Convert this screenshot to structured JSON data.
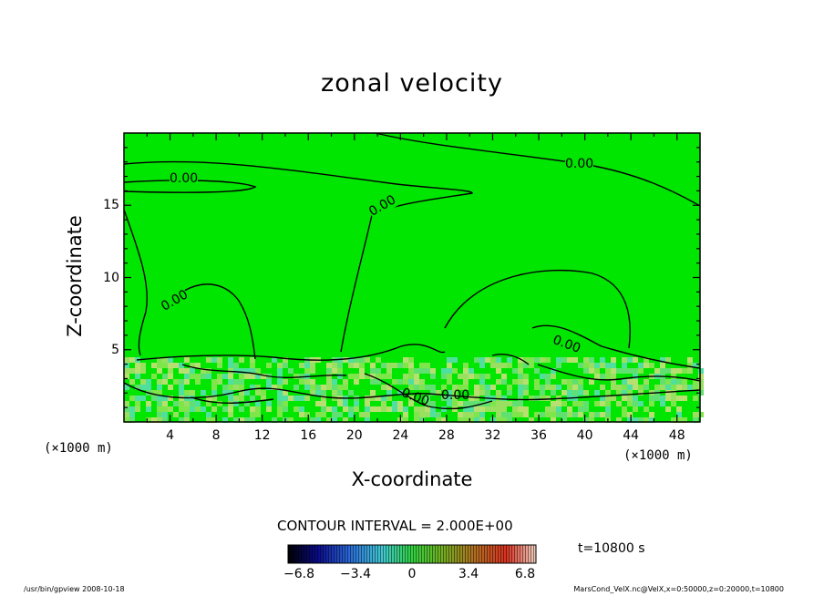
{
  "chart_data": {
    "type": "contour",
    "title": "zonal velocity",
    "xlabel": "X-coordinate",
    "ylabel": "Z-coordinate",
    "x_unit": "(×1000 m)",
    "y_unit": "(×1000 m)",
    "xlim": [
      0,
      50
    ],
    "ylim": [
      0,
      20
    ],
    "x_ticks": [
      4,
      8,
      12,
      16,
      20,
      24,
      28,
      32,
      36,
      40,
      44,
      48
    ],
    "y_ticks": [
      5,
      10,
      15
    ],
    "contour_labels": [
      "0.00",
      "0.00",
      "0.00",
      "0.00",
      "0.00",
      "0.00",
      "0.00"
    ],
    "contour_interval_text": "CONTOUR INTERVAL = 2.000E+00",
    "colorbar": {
      "ticks": [
        "−6.8",
        "−3.4",
        "0",
        "3.4",
        "6.8"
      ],
      "range": [
        -6.8,
        6.8
      ]
    },
    "time_text": "t=10800 s"
  },
  "footer": {
    "left": "/usr/bin/gpview   2008-10-18",
    "right": "MarsCond_VelX.nc@VelX,x=0:50000,z=0:20000,t=10800"
  },
  "colors": {
    "field_main": "#00e600",
    "field_light": "#7ee54a",
    "field_cyan": "#4fe0a0",
    "contour": "#000000"
  }
}
